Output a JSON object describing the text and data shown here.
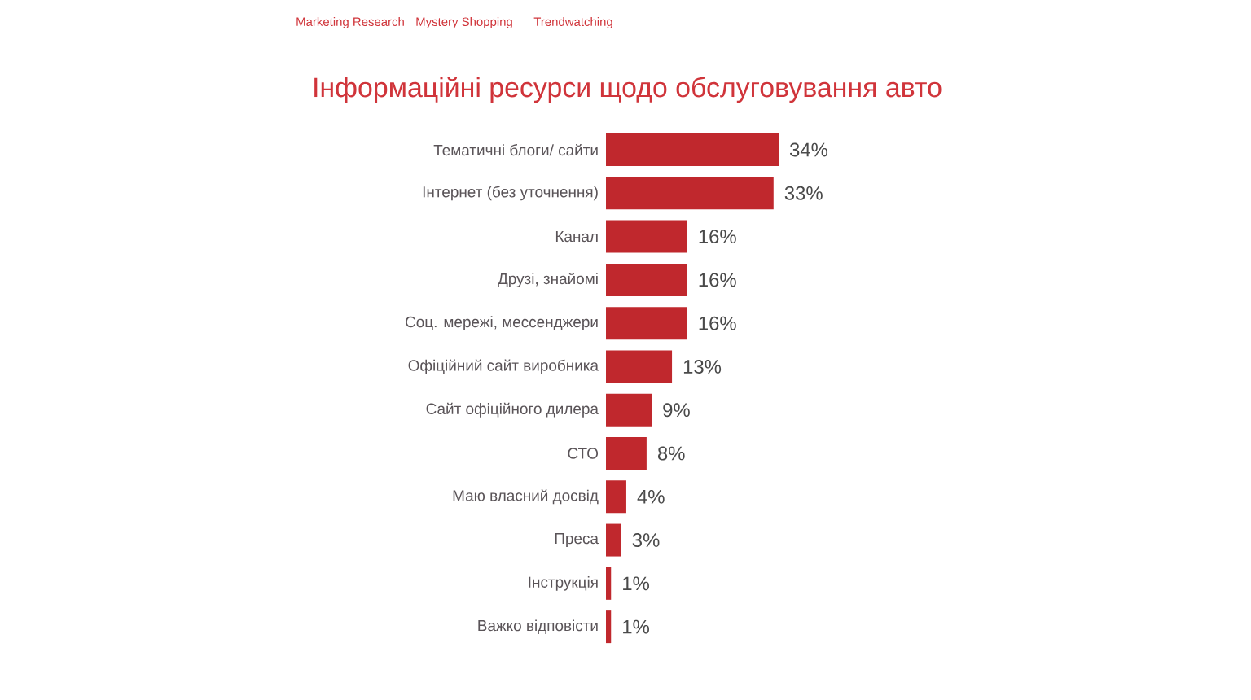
{
  "chart_data": {
    "type": "bar",
    "orientation": "horizontal",
    "title": "Інформаційні ресурси щодо обслуговування авто",
    "categories": [
      "Тематичні блоги/ сайти",
      "Інтернет (без уточнення)",
      "Канал",
      "Друзі, знайомі",
      "Соц. мережі, мессенджери",
      "Офіційний сайт виробника",
      "Сайт офіційного дилера",
      "СТО",
      "Маю власний досвід",
      "Преса",
      "Інструкція",
      "Важко відповісти"
    ],
    "values": [
      34,
      33,
      16,
      16,
      16,
      13,
      9,
      8,
      4,
      3,
      1,
      1
    ],
    "value_labels": [
      "34%",
      "33%",
      "16%",
      "16%",
      "16%",
      "13%",
      "9%",
      "8%",
      "4%",
      "3%",
      "1%",
      "1%"
    ],
    "color": "#c0282d",
    "annotations": [
      "Marketing Research",
      "Mystery Shopping",
      "Trendwatching"
    ]
  }
}
